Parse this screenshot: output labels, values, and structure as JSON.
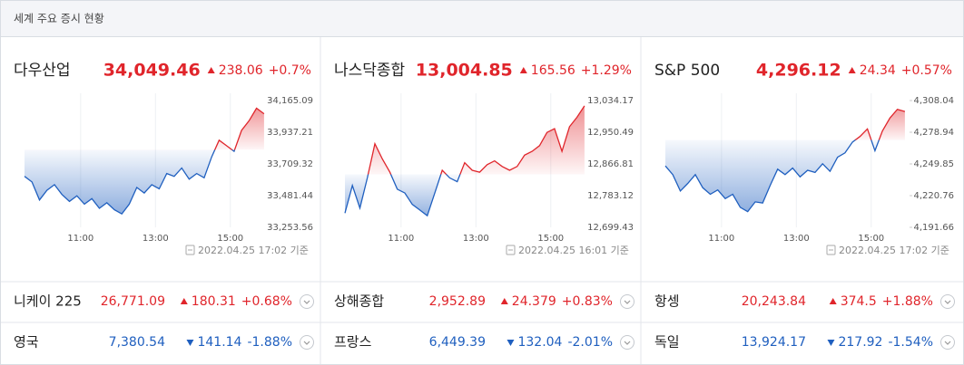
{
  "header": {
    "title": "세계 주요 증시 현황"
  },
  "colors": {
    "up": "#e0252b",
    "down": "#1f5fbf"
  },
  "indices": [
    {
      "name": "다우산업",
      "price": "34,049.46",
      "change": "238.06",
      "percent": "+0.7%",
      "direction": "up",
      "chart": {
        "type": "line",
        "x": [
          9.5,
          9.7,
          9.9,
          10.1,
          10.3,
          10.5,
          10.7,
          10.9,
          11.1,
          11.3,
          11.5,
          11.7,
          11.9,
          12.1,
          12.3,
          12.5,
          12.7,
          12.9,
          13.1,
          13.3,
          13.5,
          13.7,
          13.9,
          14.1,
          14.3,
          14.5,
          14.7,
          14.9,
          15.1,
          15.3,
          15.5,
          15.7,
          15.9
        ],
        "values": [
          33620,
          33580,
          33450,
          33520,
          33560,
          33490,
          33440,
          33480,
          33420,
          33460,
          33390,
          33430,
          33380,
          33350,
          33420,
          33540,
          33500,
          33560,
          33530,
          33640,
          33620,
          33680,
          33600,
          33640,
          33610,
          33760,
          33880,
          33840,
          33800,
          33950,
          34020,
          34110,
          34070
        ],
        "xlim": [
          9.5,
          16
        ],
        "xticks": [
          {
            "value": 11,
            "label": "11:00"
          },
          {
            "value": 13,
            "label": "13:00"
          },
          {
            "value": 15,
            "label": "15:00"
          }
        ],
        "ylim": [
          33253.56,
          34165.09
        ],
        "yticks": [
          {
            "value": 34165.09,
            "label": "34,165.09"
          },
          {
            "value": 33937.21,
            "label": "33,937.21"
          },
          {
            "value": 33709.32,
            "label": "33,709.32"
          },
          {
            "value": 33481.44,
            "label": "33,481.44"
          },
          {
            "value": 33253.56,
            "label": "33,253.56"
          }
        ],
        "grid": true,
        "timestamp": "2022.04.25 17:02 기준"
      }
    },
    {
      "name": "나스닥종합",
      "price": "13,004.85",
      "change": "165.56",
      "percent": "+1.29%",
      "direction": "up",
      "chart": {
        "type": "line",
        "x": [
          9.5,
          9.7,
          9.9,
          10.1,
          10.3,
          10.5,
          10.7,
          10.9,
          11.1,
          11.3,
          11.5,
          11.7,
          11.9,
          12.1,
          12.3,
          12.5,
          12.7,
          12.9,
          13.1,
          13.3,
          13.5,
          13.7,
          13.9,
          14.1,
          14.3,
          14.5,
          14.7,
          14.9,
          15.1,
          15.3,
          15.5,
          15.7,
          15.9
        ],
        "values": [
          12737,
          12810,
          12750,
          12830,
          12920,
          12880,
          12845,
          12800,
          12790,
          12760,
          12745,
          12730,
          12790,
          12850,
          12830,
          12820,
          12870,
          12850,
          12845,
          12865,
          12875,
          12860,
          12850,
          12860,
          12890,
          12900,
          12915,
          12950,
          12960,
          12900,
          12965,
          12990,
          13020
        ],
        "xlim": [
          9.5,
          16
        ],
        "xticks": [
          {
            "value": 11,
            "label": "11:00"
          },
          {
            "value": 13,
            "label": "13:00"
          },
          {
            "value": 15,
            "label": "15:00"
          }
        ],
        "ylim": [
          12699.43,
          13034.17
        ],
        "yticks": [
          {
            "value": 13034.17,
            "label": "13,034.17"
          },
          {
            "value": 12950.49,
            "label": "12,950.49"
          },
          {
            "value": 12866.81,
            "label": "12,866.81"
          },
          {
            "value": 12783.12,
            "label": "12,783.12"
          },
          {
            "value": 12699.43,
            "label": "12,699.43"
          }
        ],
        "grid": true,
        "timestamp": "2022.04.25 16:01 기준"
      }
    },
    {
      "name": "S&P 500",
      "price": "4,296.12",
      "change": "24.34",
      "percent": "+0.57%",
      "direction": "up",
      "chart": {
        "type": "line",
        "x": [
          9.5,
          9.7,
          9.9,
          10.1,
          10.3,
          10.5,
          10.7,
          10.9,
          11.1,
          11.3,
          11.5,
          11.7,
          11.9,
          12.1,
          12.3,
          12.5,
          12.7,
          12.9,
          13.1,
          13.3,
          13.5,
          13.7,
          13.9,
          14.1,
          14.3,
          14.5,
          14.7,
          14.9,
          15.1,
          15.3,
          15.5,
          15.7,
          15.9
        ],
        "values": [
          4248,
          4240,
          4225,
          4232,
          4240,
          4228,
          4222,
          4226,
          4218,
          4222,
          4210,
          4206,
          4215,
          4214,
          4230,
          4245,
          4240,
          4246,
          4238,
          4244,
          4242,
          4250,
          4243,
          4256,
          4260,
          4270,
          4275,
          4282,
          4262,
          4280,
          4292,
          4300,
          4298
        ],
        "xlim": [
          9.5,
          16
        ],
        "xticks": [
          {
            "value": 11,
            "label": "11:00"
          },
          {
            "value": 13,
            "label": "13:00"
          },
          {
            "value": 15,
            "label": "15:00"
          }
        ],
        "ylim": [
          4191.66,
          4308.04
        ],
        "yticks": [
          {
            "value": 4308.04,
            "label": "4,308.04"
          },
          {
            "value": 4278.94,
            "label": "4,278.94"
          },
          {
            "value": 4249.85,
            "label": "4,249.85"
          },
          {
            "value": 4220.76,
            "label": "4,220.76"
          },
          {
            "value": 4191.66,
            "label": "4,191.66"
          }
        ],
        "grid": true,
        "timestamp": "2022.04.25 17:02 기준"
      }
    }
  ],
  "others": [
    {
      "name": "니케이 225",
      "price": "26,771.09",
      "change": "180.31",
      "percent": "+0.68%",
      "direction": "up"
    },
    {
      "name": "상해종합",
      "price": "2,952.89",
      "change": "24.379",
      "percent": "+0.83%",
      "direction": "up"
    },
    {
      "name": "항셍",
      "price": "20,243.84",
      "change": "374.5",
      "percent": "+1.88%",
      "direction": "up"
    },
    {
      "name": "영국",
      "price": "7,380.54",
      "change": "141.14",
      "percent": "-1.88%",
      "direction": "down"
    },
    {
      "name": "프랑스",
      "price": "6,449.39",
      "change": "132.04",
      "percent": "-2.01%",
      "direction": "down"
    },
    {
      "name": "독일",
      "price": "13,924.17",
      "change": "217.92",
      "percent": "-1.54%",
      "direction": "down"
    }
  ]
}
